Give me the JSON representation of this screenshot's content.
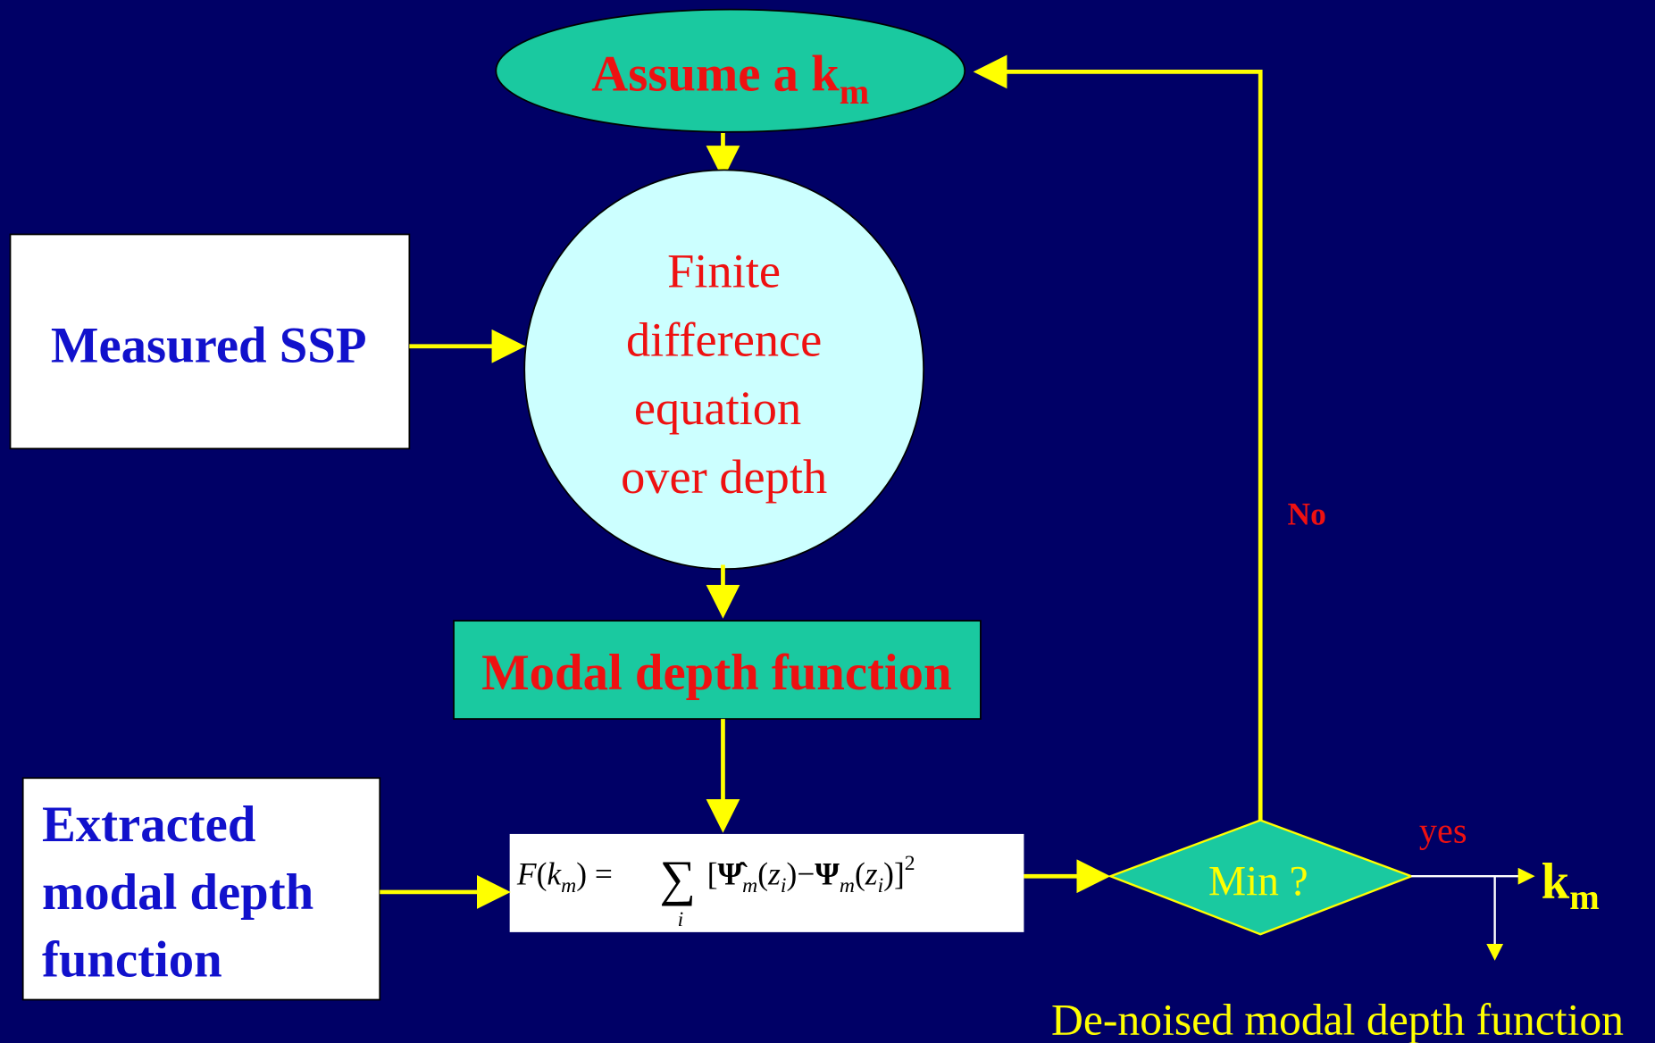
{
  "nodes": {
    "assume": {
      "text": "Assume a k",
      "sub": "m"
    },
    "finite": {
      "lines": [
        "Finite",
        "difference",
        "equation",
        "over depth"
      ]
    },
    "ssp": {
      "text": "Measured SSP"
    },
    "modal": {
      "text": "Modal depth function"
    },
    "extracted": {
      "lines": [
        "Extracted",
        "modal depth",
        "function"
      ]
    },
    "formula": {
      "parts": [
        "F",
        "(",
        "k",
        "m",
        ")",
        " = ",
        "∑",
        "i",
        "[",
        "Ψ̂",
        "m",
        "(",
        "z",
        "i",
        ")",
        "−",
        "Ψ",
        "m",
        "(",
        "z",
        "i",
        ")]",
        "2"
      ]
    },
    "min": {
      "text": "Min ?"
    },
    "output": {
      "text": "k",
      "sub": "m"
    },
    "denoised": {
      "text": "De-noised modal depth function"
    }
  },
  "edges": {
    "no": "No",
    "yes": "yes"
  }
}
